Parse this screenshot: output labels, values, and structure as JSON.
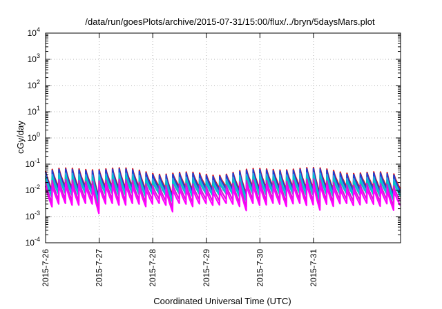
{
  "chart_data": {
    "type": "line",
    "title": "/data/run/goesPlots/archive/2015-07-31/15:00/flux/../bryn/5daysMars.plot",
    "xlabel": "Coordinated Universal Time (UTC)",
    "ylabel": "cGy/day",
    "yscale": "log",
    "grid": true,
    "xlim": [
      "2015-07-26",
      "2015-08-01 15:00"
    ],
    "ylim": [
      0.0001,
      10000
    ],
    "x_ticks": [
      "2015-7-26",
      "2015-7-27",
      "2015-7-28",
      "2015-7-29",
      "2015-7-30",
      "2015-7-31"
    ],
    "y_ticks": [
      {
        "base": "10",
        "exp": "-4"
      },
      {
        "base": "10",
        "exp": "-3"
      },
      {
        "base": "10",
        "exp": "-2"
      },
      {
        "base": "10",
        "exp": "-1"
      },
      {
        "base": "10",
        "exp": "0"
      },
      {
        "base": "10",
        "exp": "1"
      },
      {
        "base": "10",
        "exp": "2"
      },
      {
        "base": "10",
        "exp": "3"
      },
      {
        "base": "10",
        "exp": "4"
      }
    ],
    "pattern": {
      "cycles_per_day": 8,
      "description": "sawtooth: sharp rise at start of each 3-hour cycle then decay"
    },
    "series": [
      {
        "color": "#e41a1c",
        "peak": 0.055,
        "trough": 0.012
      },
      {
        "color": "#1f3fd0",
        "peak": 0.05,
        "trough": 0.01
      },
      {
        "color": "#2aa8e0",
        "peak": 0.035,
        "trough": 0.008
      },
      {
        "color": "#00c8c8",
        "peak": 0.028,
        "trough": 0.0065
      },
      {
        "color": "#d020d0",
        "peak": 0.02,
        "trough": 0.004
      },
      {
        "color": "#ff00ff",
        "peak": 0.014,
        "trough": 0.0028
      }
    ]
  }
}
